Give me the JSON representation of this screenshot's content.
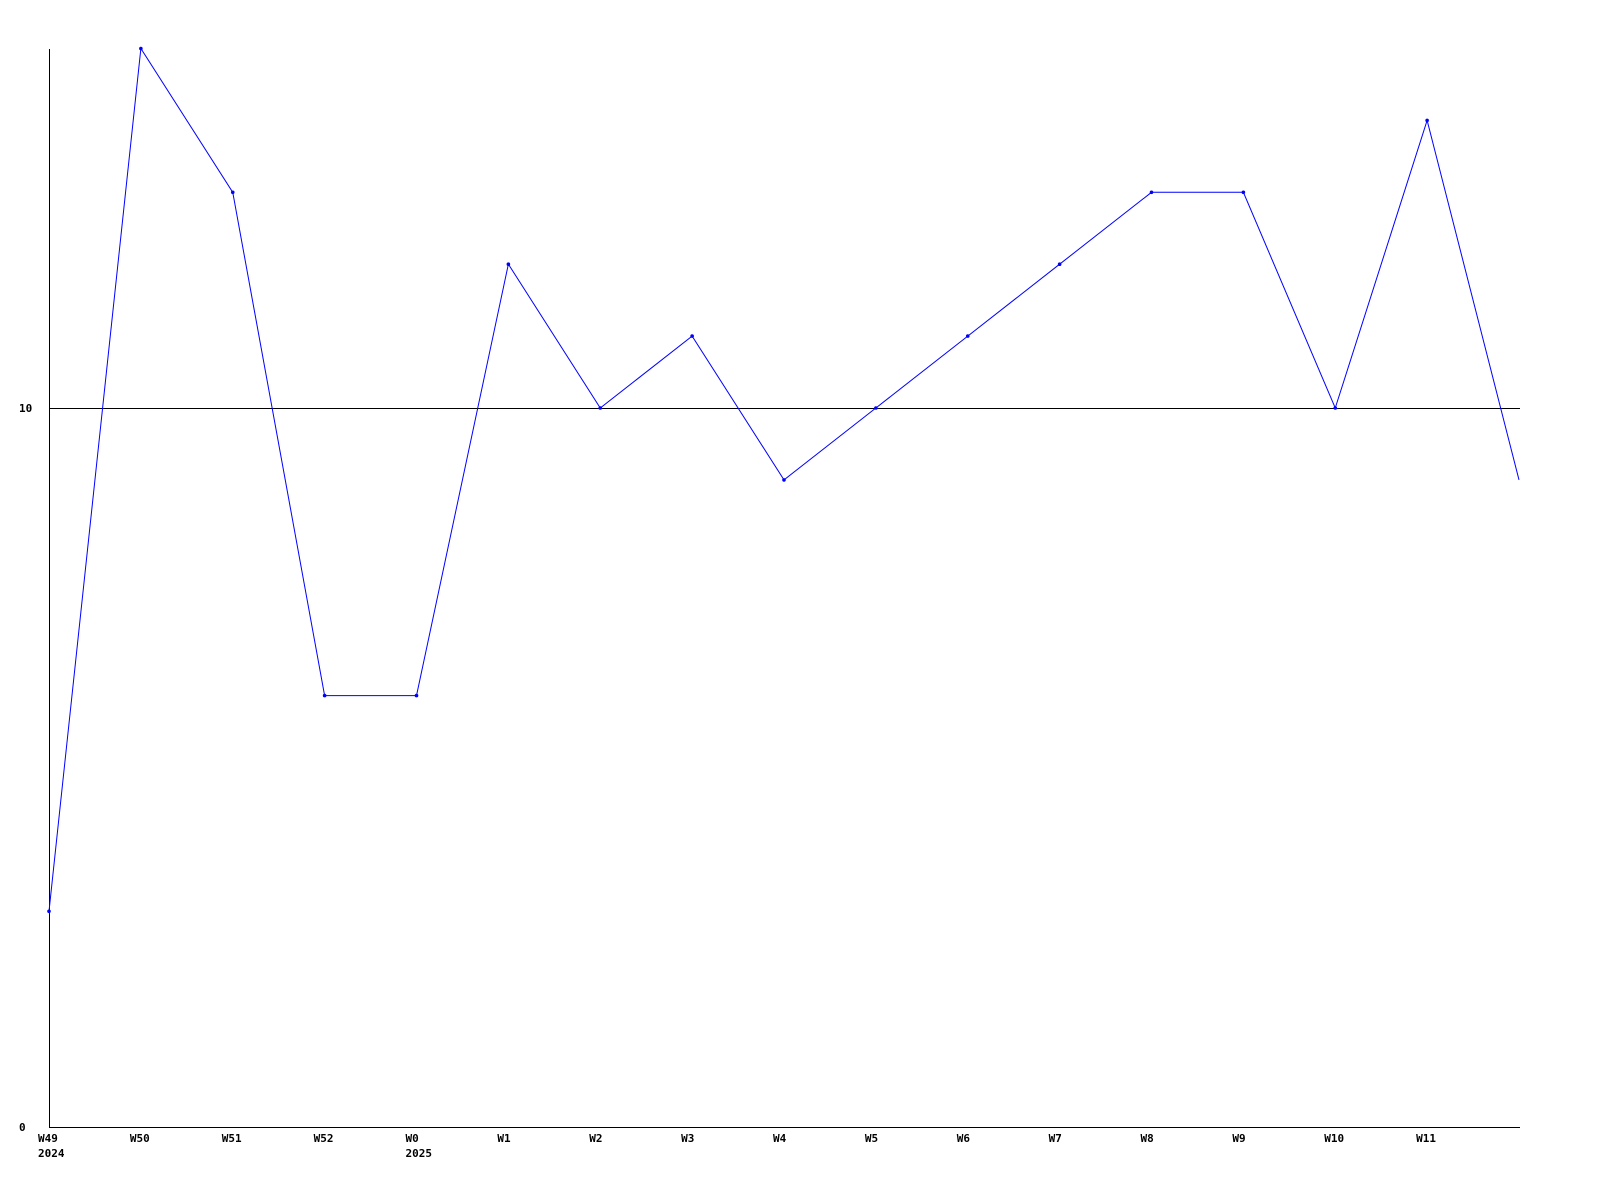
{
  "chart_data": {
    "type": "line",
    "title": "",
    "xlabel": "",
    "ylabel": "",
    "ylim": [
      0,
      15
    ],
    "y_ticks": [
      "0",
      "10"
    ],
    "reference_line": 10,
    "grid": false,
    "legend": "none",
    "categories": [
      "W49",
      "W50",
      "W51",
      "W52",
      "W0",
      "W1",
      "W2",
      "W3",
      "W4",
      "W5",
      "W6",
      "W7",
      "W8",
      "W9",
      "W10",
      "W11",
      ""
    ],
    "year_labels": [
      {
        "index": 0,
        "label": "2024"
      },
      {
        "index": 4,
        "label": "2025"
      }
    ],
    "series": [
      {
        "values": [
          3,
          15,
          13,
          6,
          6,
          12,
          10,
          11,
          9,
          10,
          11,
          12,
          13,
          13,
          10,
          14,
          9
        ],
        "color": "#0000ff"
      }
    ],
    "colors": {
      "line": "#0000ff",
      "axis": "#000000"
    }
  }
}
